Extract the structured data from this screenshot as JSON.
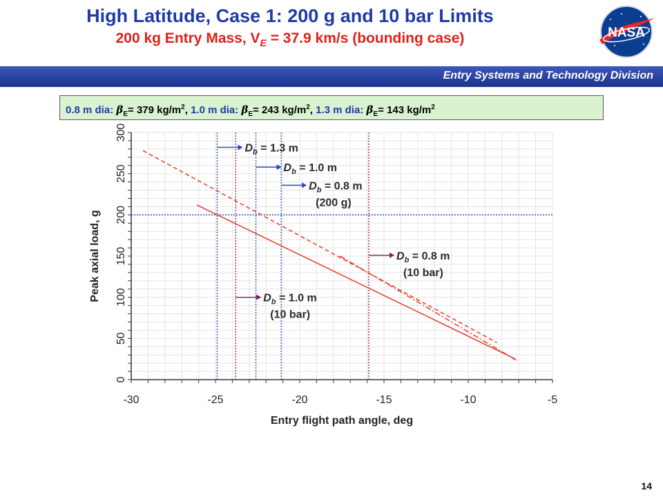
{
  "slide": {
    "title": "High Latitude, Case 1: 200 g and 10 bar Limits",
    "subtitle_pre": "200 kg Entry Mass, V",
    "subtitle_sub": "E",
    "subtitle_post": " = 37.9 km/s (bounding case)",
    "division": "Entry Systems and Technology Division",
    "page_number": "14",
    "logo_text": "NASA"
  },
  "info": {
    "d1": "0.8 m dia:",
    "b1": "β",
    "s1": "E",
    "v1": "= 379 kg/m",
    "d2": "1.0 m dia:",
    "b2": "β",
    "s2": "E",
    "v2": "= 243 kg/m",
    "d3": "1.3 m dia:",
    "b3": "β",
    "s3": "E",
    "v3": "= 143 kg/m",
    "exp": "2",
    "sep": ", "
  },
  "chart_data": {
    "type": "line",
    "xlabel": "Entry flight path angle, deg",
    "ylabel": "Peak axial load, g",
    "xlim": [
      -30,
      -5
    ],
    "ylim": [
      0,
      300
    ],
    "xticks": [
      -30,
      -25,
      -20,
      -15,
      -10,
      -5
    ],
    "yticks": [
      0,
      50,
      100,
      150,
      200,
      250,
      300
    ],
    "grid": true,
    "series": [
      {
        "style": "solid",
        "color": "#e8452f",
        "x": [
          -26.1,
          -7.2
        ],
        "y": [
          212,
          25
        ]
      },
      {
        "style": "dashed",
        "color": "#e8452f",
        "x": [
          -29.3,
          -8.3
        ],
        "y": [
          278,
          45
        ]
      },
      {
        "style": "dashdot",
        "color": "#e8452f",
        "x": [
          -17.6,
          -7.1
        ],
        "y": [
          150,
          23
        ]
      }
    ],
    "reference_lines": [
      {
        "orientation": "horizontal",
        "y": 200,
        "color": "#2346c8",
        "label": "200 g limit"
      },
      {
        "orientation": "vertical",
        "x": -24.9,
        "color": "#2346c8",
        "kind": "200 g"
      },
      {
        "orientation": "vertical",
        "x": -22.6,
        "color": "#2346c8",
        "kind": "200 g"
      },
      {
        "orientation": "vertical",
        "x": -21.1,
        "color": "#2346c8",
        "kind": "200 g"
      },
      {
        "orientation": "vertical",
        "x": -23.8,
        "color": "#8b1a5a",
        "kind": "10 bar"
      },
      {
        "orientation": "vertical",
        "x": -15.9,
        "color": "#8b1a5a",
        "kind": "10 bar"
      }
    ],
    "annotations": [
      {
        "text": "= 1.3 m",
        "arrow_color": "#2346c8",
        "x": -24.9,
        "y": 282
      },
      {
        "text": "= 1.0 m",
        "arrow_color": "#2346c8",
        "x": -22.6,
        "y": 258
      },
      {
        "text": "= 0.8 m",
        "arrow_color": "#2346c8",
        "x": -21.1,
        "y": 236,
        "note": "(200 g)"
      },
      {
        "text": "= 0.8 m",
        "arrow_color": "#8b1a5a",
        "x": -15.9,
        "y": 151,
        "note": "(10 bar)"
      },
      {
        "text": "= 1.0 m",
        "arrow_color": "#8b1a5a",
        "x": -23.8,
        "y": 100,
        "note": "(10 bar)"
      }
    ],
    "annotation_symbol": "D",
    "annotation_sub": "b"
  }
}
